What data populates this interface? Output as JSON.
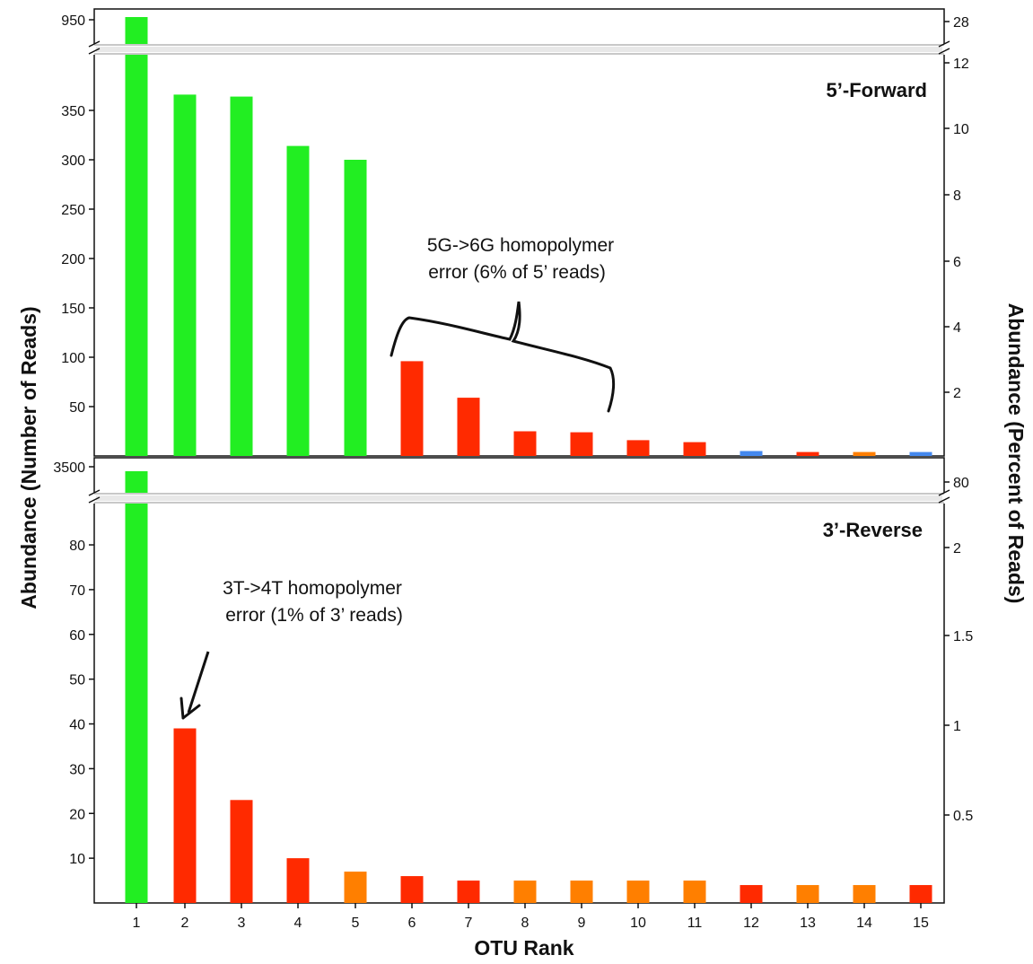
{
  "chart_data": [
    {
      "type": "bar",
      "title": "5’-Forward",
      "xlabel": "OTU Rank",
      "ylabel": "Abundance (Number of Reads)",
      "ylabel_right": "Abundance (Percent of Reads)",
      "categories": [
        "1",
        "2",
        "3",
        "4",
        "5",
        "6",
        "7",
        "8",
        "9",
        "10",
        "11",
        "12",
        "13",
        "14",
        "15"
      ],
      "values": [
        950,
        366,
        364,
        314,
        300,
        96,
        59,
        25,
        24,
        16,
        14,
        5,
        4,
        4,
        4
      ],
      "colors": [
        "#22ee22",
        "#22ee22",
        "#22ee22",
        "#22ee22",
        "#22ee22",
        "#ff2a00",
        "#ff2a00",
        "#ff2a00",
        "#ff2a00",
        "#ff2a00",
        "#ff2a00",
        "#4488ee",
        "#ff2a00",
        "#ff7f00",
        "#4488ee"
      ],
      "ylim": [
        0,
        400
      ],
      "yticks": [
        "50",
        "100",
        "150",
        "200",
        "250",
        "300",
        "350"
      ],
      "y_break_tick": "950",
      "right_ticks": [
        "2",
        "4",
        "6",
        "8",
        "10",
        "12"
      ],
      "right_break_tick": "28",
      "annotation": [
        "5G->6G homopolymer",
        "error (6% of 5’ reads)"
      ],
      "grid": false
    },
    {
      "type": "bar",
      "title": "3’-Reverse",
      "xlabel": "OTU Rank",
      "ylabel": "Abundance (Number of Reads)",
      "ylabel_right": "Abundance (Percent of Reads)",
      "categories": [
        "1",
        "2",
        "3",
        "4",
        "5",
        "6",
        "7",
        "8",
        "9",
        "10",
        "11",
        "12",
        "13",
        "14",
        "15"
      ],
      "values": [
        3500,
        39,
        23,
        10,
        7,
        6,
        5,
        5,
        5,
        5,
        5,
        4,
        4,
        4,
        4
      ],
      "colors": [
        "#22ee22",
        "#ff2a00",
        "#ff2a00",
        "#ff2a00",
        "#ff7f00",
        "#ff2a00",
        "#ff2a00",
        "#ff7f00",
        "#ff7f00",
        "#ff7f00",
        "#ff7f00",
        "#ff2a00",
        "#ff7f00",
        "#ff7f00",
        "#ff2a00"
      ],
      "ylim": [
        0,
        88
      ],
      "yticks": [
        "10",
        "20",
        "30",
        "40",
        "50",
        "60",
        "70",
        "80"
      ],
      "y_break_tick": "3500",
      "right_ticks": [
        "0.5",
        "1",
        "1.5",
        "2"
      ],
      "right_break_tick": "80",
      "annotation": [
        "3T->4T homopolymer",
        "error (1% of 3’ reads)"
      ],
      "grid": false
    }
  ]
}
